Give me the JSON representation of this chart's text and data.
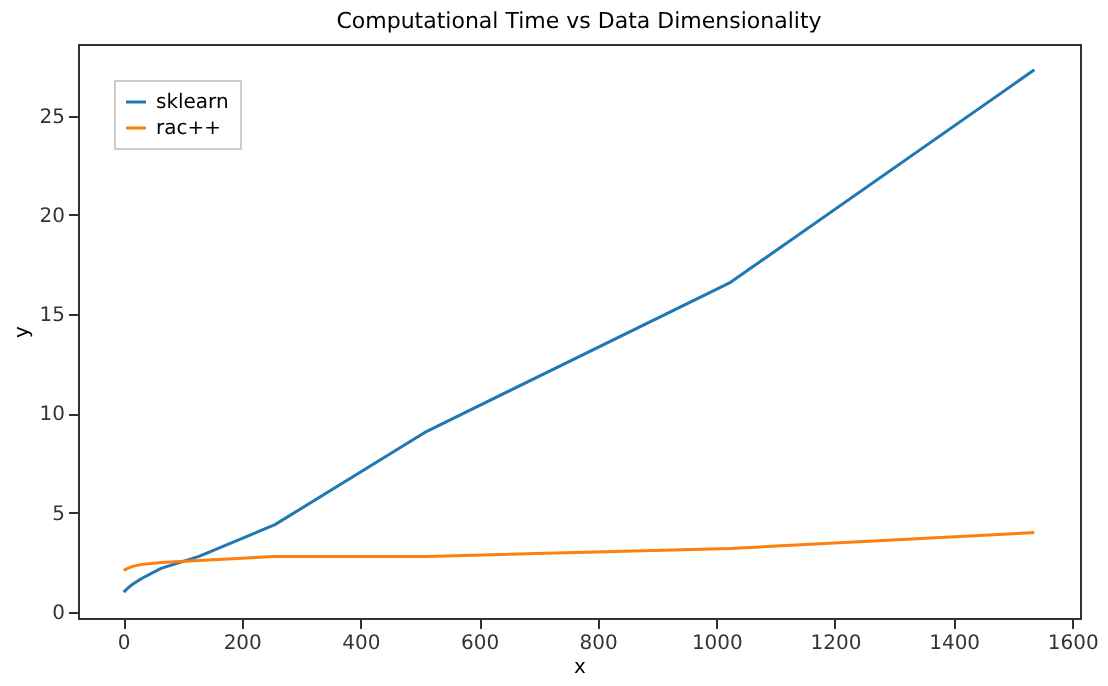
{
  "chart_data": {
    "type": "line",
    "title": "Computational Time vs Data Dimensionality",
    "xlabel": "x",
    "ylabel": "y",
    "x": [
      1,
      8,
      16,
      32,
      64,
      128,
      256,
      512,
      1024,
      1536
    ],
    "series": [
      {
        "name": "sklearn",
        "color": "#1f77b4",
        "values": [
          1.0,
          1.2,
          1.4,
          1.7,
          2.2,
          2.8,
          4.4,
          9.1,
          16.6,
          27.3
        ]
      },
      {
        "name": "rac++",
        "color": "#ff7f0e",
        "values": [
          2.1,
          2.2,
          2.3,
          2.4,
          2.5,
          2.6,
          2.8,
          2.8,
          3.2,
          4.0
        ]
      }
    ],
    "xlim": [
      -76,
      1613
    ],
    "ylim": [
      -0.3,
      28.6
    ],
    "xticks": [
      0,
      200,
      400,
      600,
      800,
      1000,
      1200,
      1400,
      1600
    ],
    "yticks": [
      0,
      5,
      10,
      15,
      20,
      25
    ],
    "grid": false,
    "legend": "top left",
    "marker": "none",
    "line_style": "solid"
  }
}
